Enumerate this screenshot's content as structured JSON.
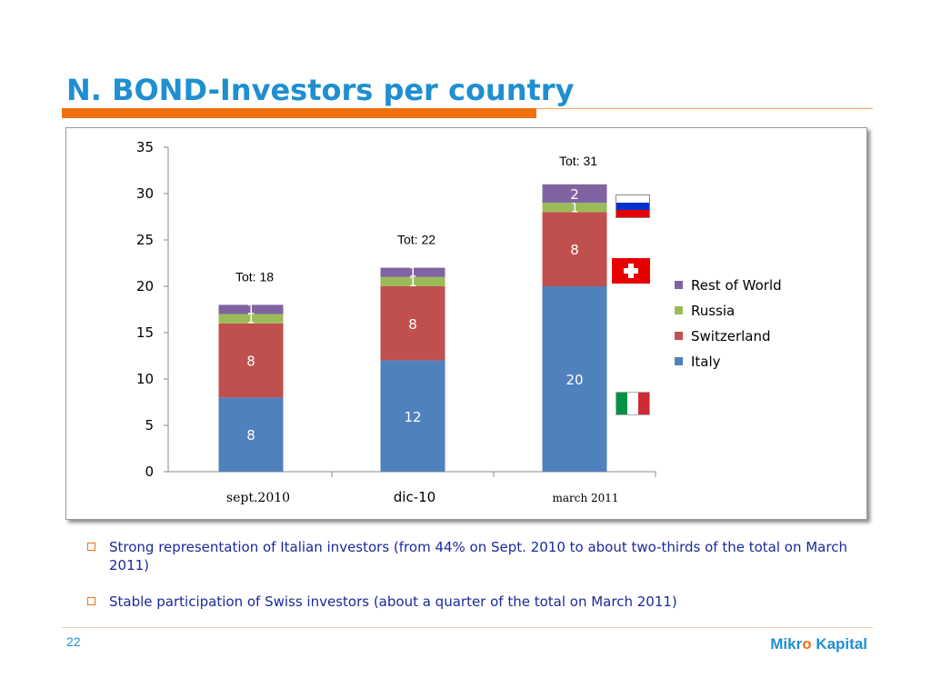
{
  "slide": {
    "title": "N. BOND-Investors per country",
    "page_number": "22",
    "logo": {
      "part1": "Mikr",
      "part2": "o",
      "part3": " Kapital"
    }
  },
  "bullets": [
    "Strong representation of Italian investors (from 44% on Sept. 2010 to about two-thirds of the total on March 2011)",
    "Stable participation of Swiss investors (about a quarter of the total on March 2011)"
  ],
  "flags": [
    {
      "name": "russia-flag",
      "colors": [
        "#ffffff",
        "#0033cc",
        "#e60000"
      ]
    },
    {
      "name": "switzerland-flag",
      "colors": [
        "#e60000",
        "#ffffff"
      ]
    },
    {
      "name": "italy-flag",
      "colors": [
        "#009246",
        "#ffffff",
        "#ce2b37"
      ]
    }
  ],
  "chart_data": {
    "type": "bar",
    "stacked": true,
    "categories": [
      "sept.2010",
      "dic-10",
      "march 2011"
    ],
    "series": [
      {
        "name": "Italy",
        "values": [
          8,
          12,
          20
        ],
        "color": "#4f81bd"
      },
      {
        "name": "Switzerland",
        "values": [
          8,
          8,
          8
        ],
        "color": "#c0504d"
      },
      {
        "name": "Russia",
        "values": [
          1,
          1,
          1
        ],
        "color": "#9bbb59"
      },
      {
        "name": "Rest of World",
        "values": [
          1,
          1,
          2
        ],
        "color": "#8064a2"
      }
    ],
    "totals": [
      "Tot: 18",
      "Tot: 22",
      "Tot: 31"
    ],
    "yticks": [
      0,
      5,
      10,
      15,
      20,
      25,
      30,
      35
    ],
    "ylim": [
      0,
      35
    ],
    "legend_position": "right",
    "grid": false
  }
}
